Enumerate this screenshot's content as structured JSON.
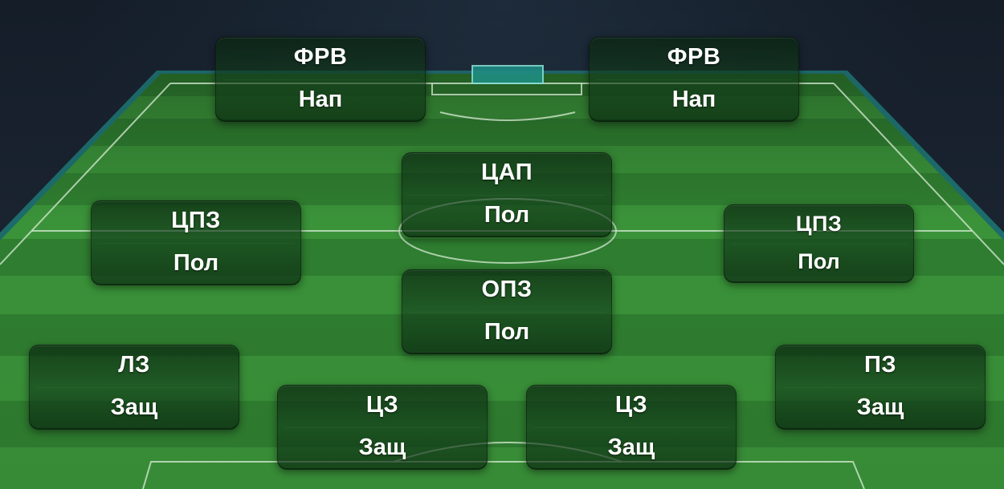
{
  "formation": {
    "players": [
      {
        "id": "fwd-left",
        "position": "ФРВ",
        "role": "Нап"
      },
      {
        "id": "fwd-right",
        "position": "ФРВ",
        "role": "Нап"
      },
      {
        "id": "cam",
        "position": "ЦАП",
        "role": "Пол"
      },
      {
        "id": "cm-left",
        "position": "ЦПЗ",
        "role": "Пол"
      },
      {
        "id": "cm-right",
        "position": "ЦПЗ",
        "role": "Пол"
      },
      {
        "id": "cdm",
        "position": "ОПЗ",
        "role": "Пол"
      },
      {
        "id": "lb",
        "position": "ЛЗ",
        "role": "Защ"
      },
      {
        "id": "rb",
        "position": "ПЗ",
        "role": "Защ"
      },
      {
        "id": "cb-left",
        "position": "ЦЗ",
        "role": "Защ"
      },
      {
        "id": "cb-right",
        "position": "ЦЗ",
        "role": "Защ"
      }
    ]
  },
  "colors": {
    "pitch_light": "#3f9a3e",
    "pitch_dark": "#2f7f31",
    "pitch_edge_glow": "#1fb5a8",
    "card_text": "#ffffff"
  }
}
